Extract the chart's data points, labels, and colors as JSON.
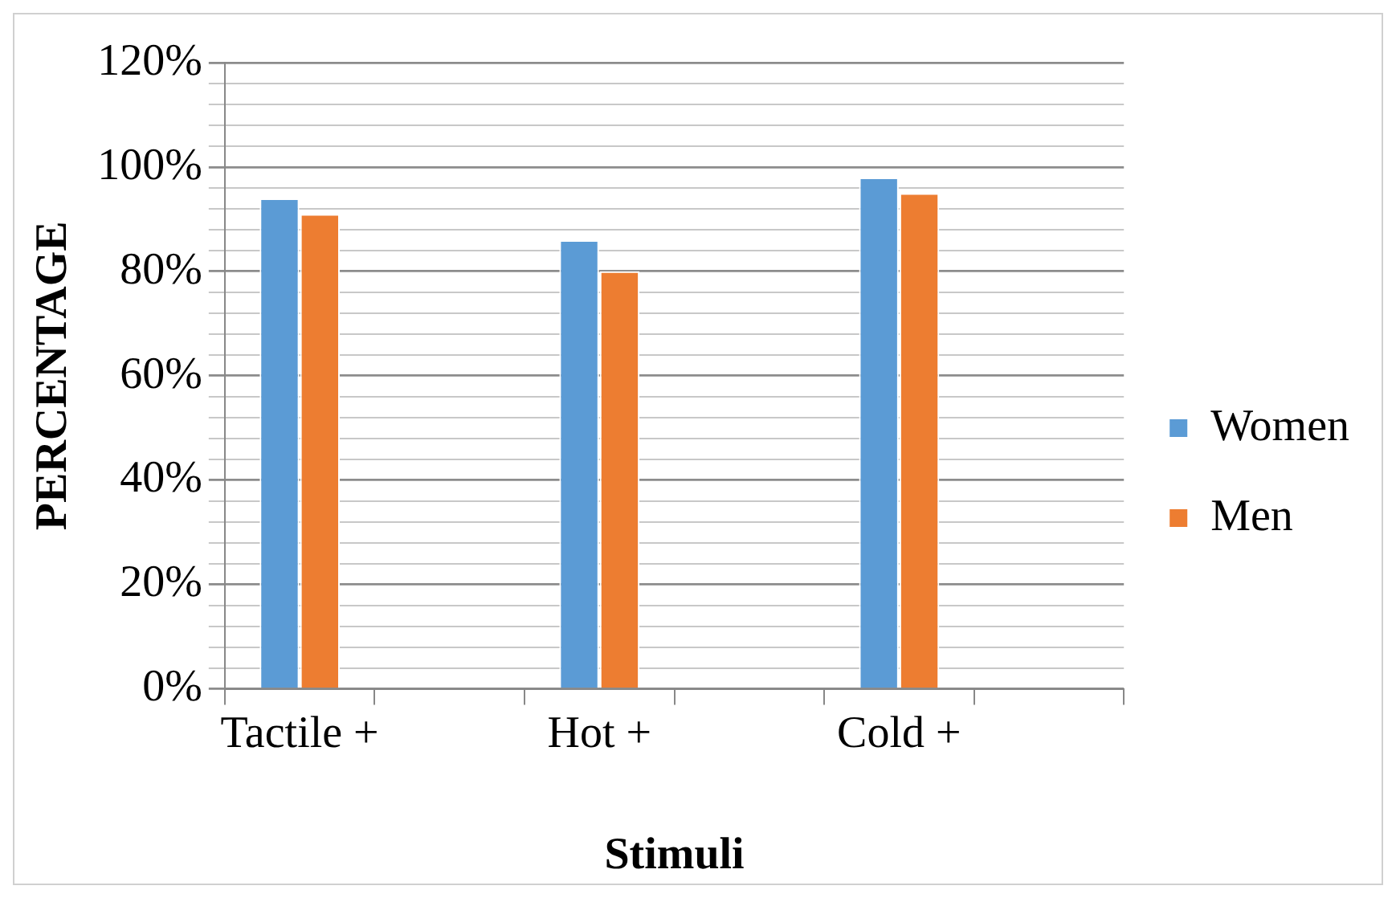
{
  "chart_data": {
    "type": "bar",
    "xlabel": "Stimuli",
    "ylabel": "PERCENTAGE",
    "categories": [
      "Tactile +",
      null,
      "Hot +",
      null,
      "Cold +",
      null
    ],
    "series": [
      {
        "name": "Women",
        "color": "#5b9bd5",
        "values": [
          94,
          null,
          86,
          null,
          98,
          null
        ]
      },
      {
        "name": "Men",
        "color": "#ed7d31",
        "values": [
          91,
          null,
          80,
          null,
          95,
          null
        ]
      }
    ],
    "ylim": [
      0,
      120
    ],
    "yticks": [
      {
        "value": 0,
        "label": "0%"
      },
      {
        "value": 4,
        "label": null
      },
      {
        "value": 8,
        "label": null
      },
      {
        "value": 12,
        "label": null
      },
      {
        "value": 16,
        "label": null
      },
      {
        "value": 20,
        "label": "20%"
      },
      {
        "value": 24,
        "label": null
      },
      {
        "value": 28,
        "label": null
      },
      {
        "value": 32,
        "label": null
      },
      {
        "value": 36,
        "label": null
      },
      {
        "value": 40,
        "label": "40%"
      },
      {
        "value": 44,
        "label": null
      },
      {
        "value": 48,
        "label": null
      },
      {
        "value": 52,
        "label": null
      },
      {
        "value": 56,
        "label": null
      },
      {
        "value": 60,
        "label": "60%"
      },
      {
        "value": 64,
        "label": null
      },
      {
        "value": 68,
        "label": null
      },
      {
        "value": 72,
        "label": null
      },
      {
        "value": 76,
        "label": null
      },
      {
        "value": 80,
        "label": "80%"
      },
      {
        "value": 84,
        "label": null
      },
      {
        "value": 88,
        "label": null
      },
      {
        "value": 92,
        "label": null
      },
      {
        "value": 96,
        "label": null
      },
      {
        "value": 100,
        "label": "100%"
      },
      {
        "value": 104,
        "label": null
      },
      {
        "value": 108,
        "label": null
      },
      {
        "value": 112,
        "label": null
      },
      {
        "value": 116,
        "label": null
      },
      {
        "value": 120,
        "label": "120%"
      }
    ],
    "grid": "y",
    "legend": "right"
  }
}
